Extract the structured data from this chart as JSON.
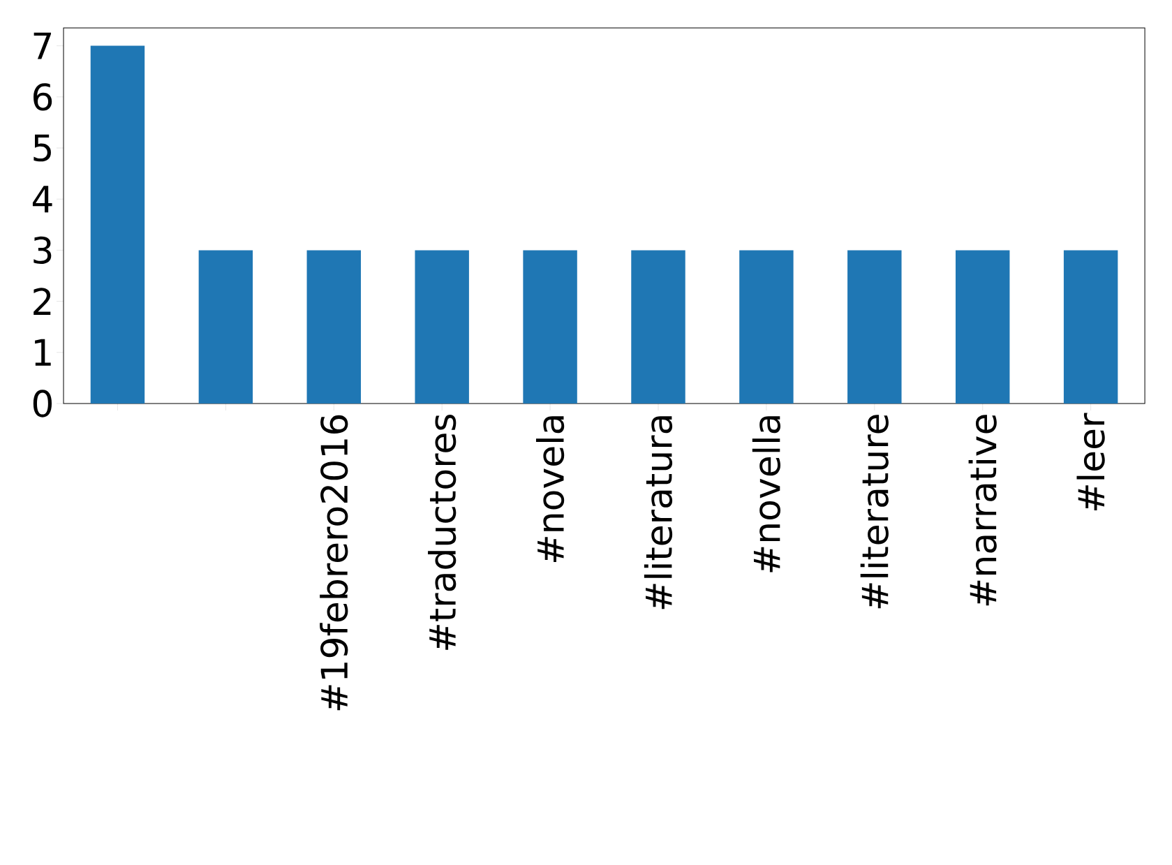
{
  "chart_data": {
    "type": "bar",
    "categories": [
      null,
      null,
      "#19febrero2016",
      "#traductores",
      "#novela",
      "#literatura",
      "#novella",
      "#literature",
      "#narrative",
      "#leer"
    ],
    "values": [
      7,
      3,
      3,
      3,
      3,
      3,
      3,
      3,
      3,
      3
    ],
    "color": "#1f77b4",
    "ylim": [
      0,
      7.35
    ],
    "yticks": [
      0,
      1,
      2,
      3,
      4,
      5,
      6,
      7
    ],
    "grid": false
  }
}
